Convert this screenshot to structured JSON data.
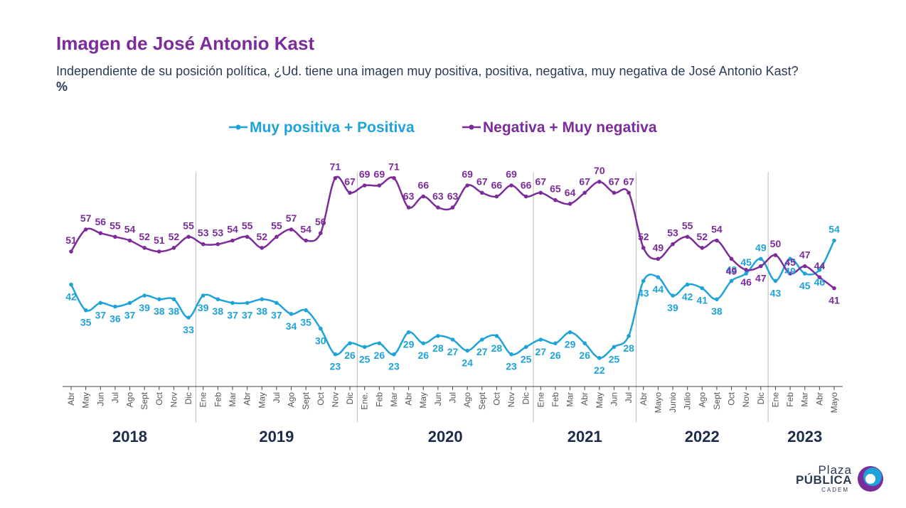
{
  "header": {
    "title": "Imagen de José Antonio Kast",
    "subtitle": "Independiente de su posición política, ¿Ud. tiene una imagen muy positiva, positiva, negativa, muy negativa de José Antonio Kast?",
    "subtitle_unit": "%"
  },
  "logo": {
    "line1": "Plaza",
    "line2": "PÚBLICA",
    "line3": "CADEM"
  },
  "colors": {
    "positive": "#1ea3d9",
    "negative": "#7b2b9a",
    "axis": "#555555",
    "year": "#1c2b4a"
  },
  "chart_data": {
    "type": "line",
    "title": "Imagen de José Antonio Kast",
    "legend_position": "top-center",
    "grid": false,
    "x": [
      "Abr",
      "May",
      "Jun",
      "Jul",
      "Ago",
      "Sept",
      "Oct",
      "Nov",
      "Dic",
      "Ene",
      "Feb",
      "Mar",
      "Abr",
      "May",
      "Jul",
      "Ago",
      "Sept",
      "Oct",
      "Nov",
      "Dic",
      "Ene.",
      "Feb",
      "Mar",
      "Abr",
      "May",
      "Jun",
      "Jul",
      "Ago",
      "Sept",
      "Oct",
      "Nov",
      "Dic",
      "Ene",
      "Feb",
      "Mar",
      "Abr",
      "May",
      "Jun",
      "Jul",
      "Abr",
      "Mayo",
      "Junio",
      "Julio",
      "Ago",
      "Sept",
      "Oct",
      "Nov",
      "Dic",
      "Ene",
      "Feb",
      "Mar",
      "Abr",
      "Mayo"
    ],
    "years": [
      {
        "label": "2018",
        "start": 0,
        "end": 8
      },
      {
        "label": "2019",
        "start": 9,
        "end": 19
      },
      {
        "label": "2020",
        "start": 20,
        "end": 31
      },
      {
        "label": "2021",
        "start": 32,
        "end": 38
      },
      {
        "label": "2022",
        "start": 39,
        "end": 47
      },
      {
        "label": "2023",
        "start": 48,
        "end": 52
      }
    ],
    "series": [
      {
        "name": "Muy positiva + Positiva",
        "values": [
          42,
          35,
          37,
          36,
          37,
          39,
          38,
          38,
          33,
          39,
          38,
          37,
          37,
          38,
          37,
          34,
          35,
          30,
          23,
          26,
          25,
          26,
          23,
          29,
          26,
          28,
          27,
          24,
          27,
          28,
          23,
          25,
          27,
          26,
          29,
          26,
          22,
          25,
          28,
          43,
          44,
          39,
          42,
          41,
          38,
          43,
          45,
          49,
          43,
          49,
          45,
          46,
          54
        ]
      },
      {
        "name": "Negativa + Muy negativa",
        "values": [
          51,
          57,
          56,
          55,
          54,
          52,
          51,
          52,
          55,
          53,
          53,
          54,
          55,
          52,
          55,
          57,
          54,
          56,
          71,
          67,
          69,
          69,
          71,
          63,
          66,
          63,
          63,
          69,
          67,
          66,
          69,
          66,
          67,
          65,
          64,
          67,
          70,
          67,
          67,
          52,
          49,
          53,
          55,
          52,
          54,
          49,
          46,
          47,
          50,
          45,
          47,
          44,
          41
        ]
      }
    ]
  }
}
